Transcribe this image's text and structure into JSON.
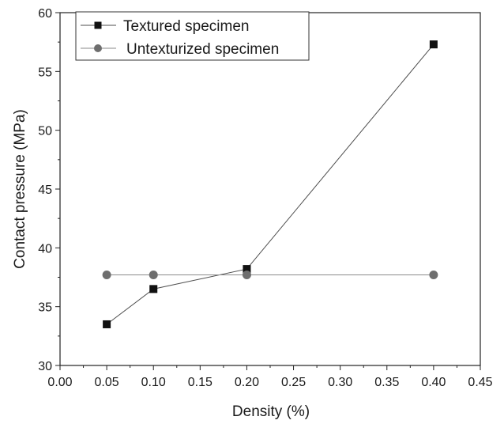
{
  "chart_data": {
    "type": "line",
    "title": "",
    "xlabel": "Density (%)",
    "ylabel": "Contact pressure (MPa)",
    "xlim": [
      0.0,
      0.45
    ],
    "ylim": [
      30,
      60
    ],
    "x_ticks": [
      "0.00",
      "0.05",
      "0.10",
      "0.15",
      "0.20",
      "0.25",
      "0.30",
      "0.35",
      "0.40",
      "0.45"
    ],
    "y_ticks": [
      "30",
      "35",
      "40",
      "45",
      "50",
      "55",
      "60"
    ],
    "grid": false,
    "legend": "top-left",
    "series": [
      {
        "name": "Textured specimen",
        "marker": "square",
        "color": "#111111",
        "x": [
          0.05,
          0.1,
          0.2,
          0.4
        ],
        "y": [
          33.5,
          36.5,
          38.2,
          57.3
        ]
      },
      {
        "name": "Untexturized specimen",
        "marker": "circle",
        "color": "#6e6e6e",
        "x": [
          0.05,
          0.1,
          0.2,
          0.4
        ],
        "y": [
          37.7,
          37.7,
          37.7,
          37.7
        ]
      }
    ]
  }
}
